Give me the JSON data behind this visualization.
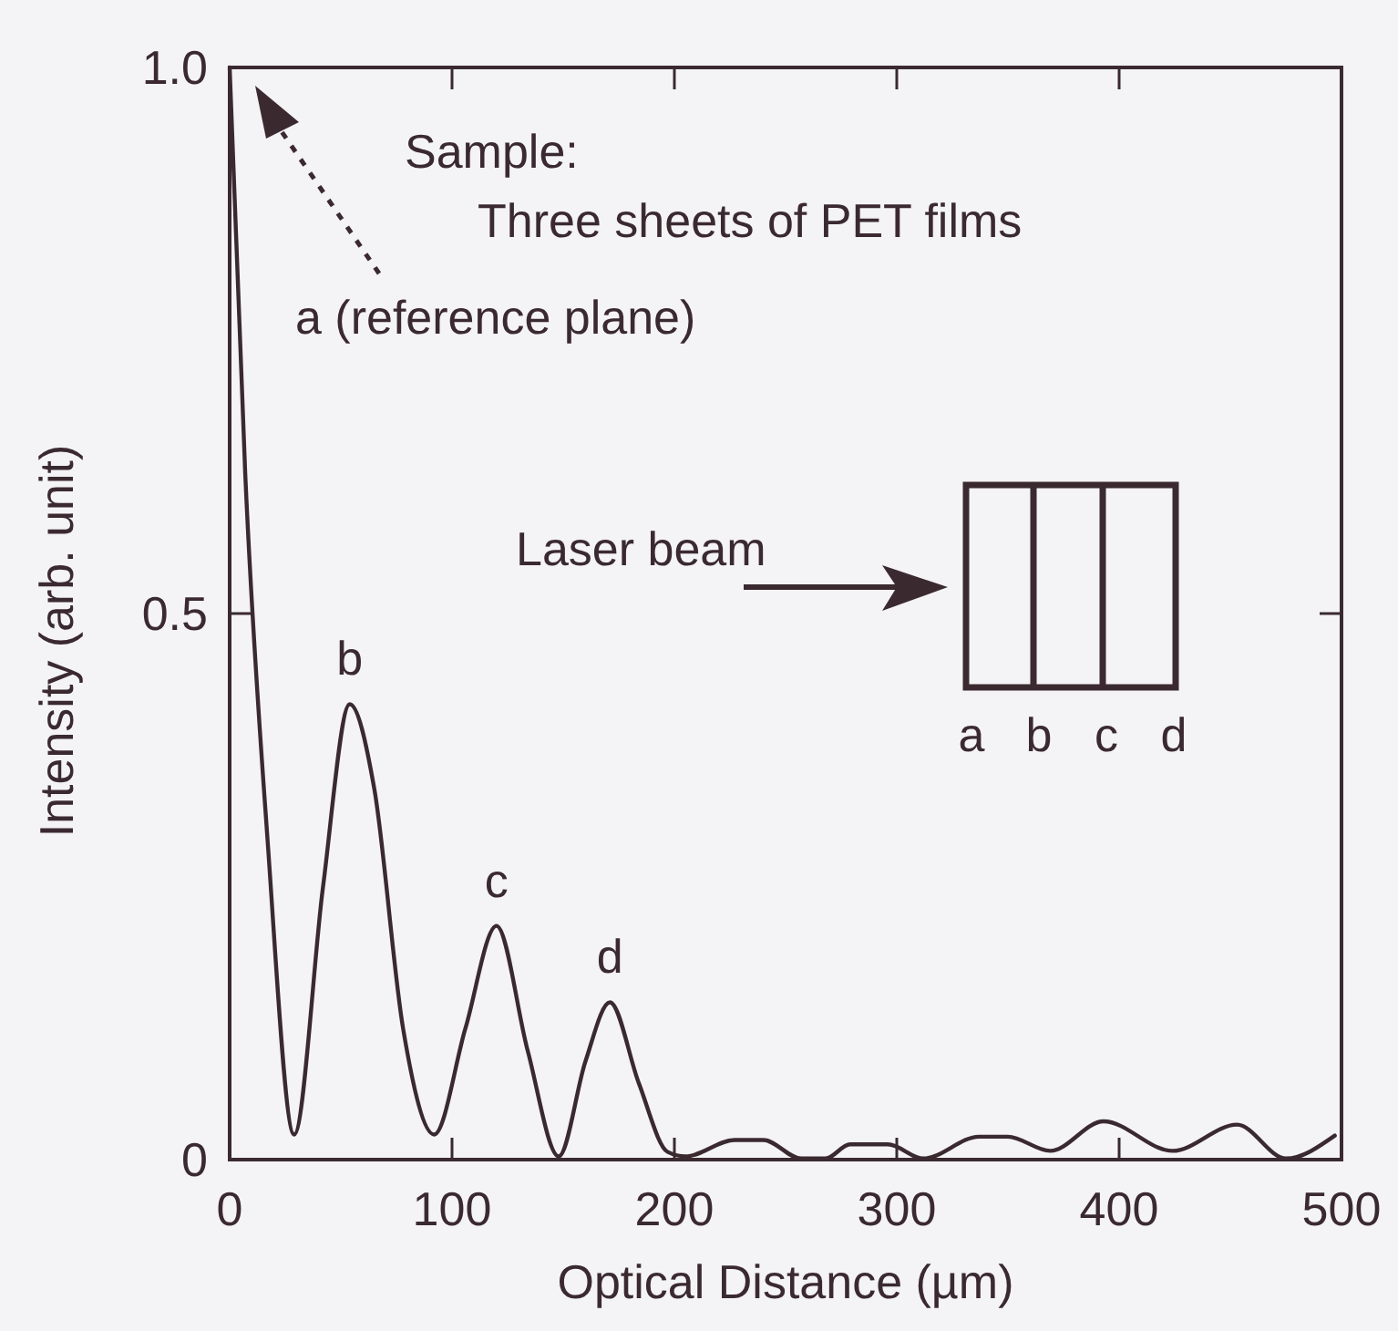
{
  "chart_data": {
    "type": "line",
    "xlabel": "Optical Distance (µm)",
    "ylabel": "Intensity (arb. unit)",
    "xlim": [
      0,
      500
    ],
    "xticks": [
      0,
      100,
      200,
      300,
      400,
      500
    ],
    "ylim": [
      0,
      1.0
    ],
    "yticks": [
      0,
      0.5,
      {
        "value": 1.0,
        "label": "1.0"
      }
    ],
    "grid": false,
    "marker": "none",
    "line_style": "solid",
    "series": [
      {
        "color": "#3a2a30",
        "x": [
          0,
          7,
          17,
          29,
          42,
          54,
          65,
          78,
          92,
          106,
          120,
          134,
          148,
          160,
          171,
          184,
          197,
          205,
          227,
          240,
          257,
          268,
          279,
          296,
          312,
          337,
          350,
          369,
          393,
          424,
          453,
          475,
          497
        ],
        "values": [
          1.0,
          0.628,
          0.294,
          0.023,
          0.25,
          0.417,
          0.34,
          0.12,
          0.023,
          0.12,
          0.214,
          0.1,
          0.003,
          0.09,
          0.144,
          0.07,
          0.007,
          0.003,
          0.018,
          0.018,
          0.001,
          0.001,
          0.014,
          0.014,
          0.001,
          0.021,
          0.021,
          0.008,
          0.035,
          0.008,
          0.032,
          0.001,
          0.022
        ]
      }
    ],
    "annotations": [
      "Sample:",
      "Three sheets of PET films",
      "a (reference plane)",
      {
        "text": "b",
        "x": 54,
        "y": 0.417
      },
      {
        "text": "c",
        "x": 120,
        "y": 0.214
      },
      {
        "text": "d",
        "x": 171,
        "y": 0.144
      },
      "Laser beam",
      "a",
      "b",
      "c",
      "d"
    ]
  }
}
